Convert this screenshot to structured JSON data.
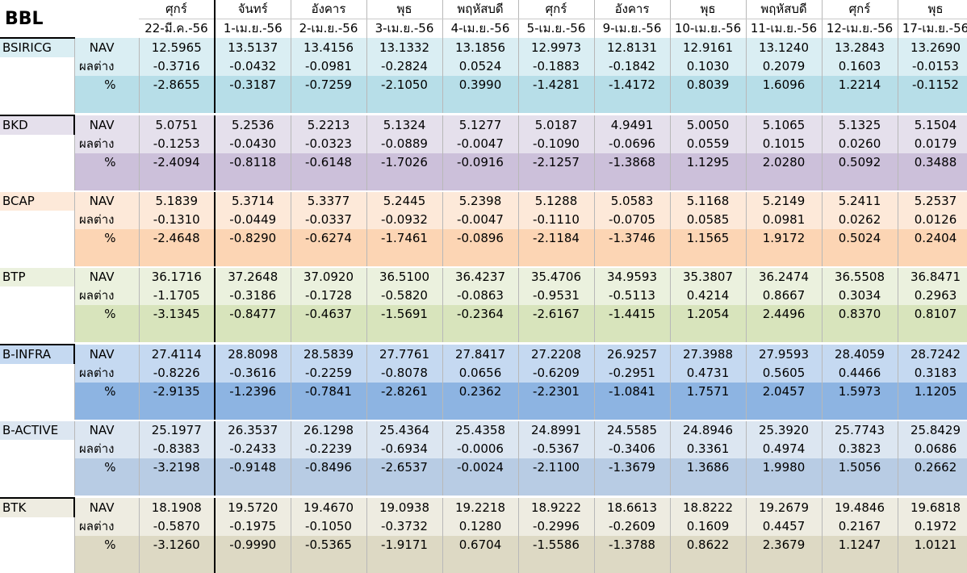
{
  "sheet_title": "BBL",
  "columns": [
    {
      "day": "ศุกร์",
      "date": "22-มี.ค.-56"
    },
    {
      "day": "จันทร์",
      "date": "1-เม.ย.-56"
    },
    {
      "day": "อังคาร",
      "date": "2-เม.ย.-56"
    },
    {
      "day": "พุธ",
      "date": "3-เม.ย.-56"
    },
    {
      "day": "พฤหัสบดี",
      "date": "4-เม.ย.-56"
    },
    {
      "day": "ศุกร์",
      "date": "5-เม.ย.-56"
    },
    {
      "day": "อังคาร",
      "date": "9-เม.ย.-56"
    },
    {
      "day": "พุธ",
      "date": "10-เม.ย.-56"
    },
    {
      "day": "พฤหัสบดี",
      "date": "11-เม.ย.-56"
    },
    {
      "day": "ศุกร์",
      "date": "12-เม.ย.-56"
    },
    {
      "day": "พุธ",
      "date": "17-เม.ย.-56"
    }
  ],
  "row_labels": {
    "nav": "NAV",
    "diff": "ผลต่าง",
    "pct": "%"
  },
  "funds": [
    {
      "name": "BSIRICG",
      "colors": {
        "light": "#daeef3",
        "dark": "#b7dee8"
      },
      "nav": [
        "12.5965",
        "13.5137",
        "13.4156",
        "13.1332",
        "13.1856",
        "12.9973",
        "12.8131",
        "12.9161",
        "13.1240",
        "13.2843",
        "13.2690"
      ],
      "diff": [
        "-0.3716",
        "-0.0432",
        "-0.0981",
        "-0.2824",
        "0.0524",
        "-0.1883",
        "-0.1842",
        "0.1030",
        "0.2079",
        "0.1603",
        "-0.0153"
      ],
      "pct": [
        "-2.8655",
        "-0.3187",
        "-0.7259",
        "-2.1050",
        "0.3990",
        "-1.4281",
        "-1.4172",
        "0.8039",
        "1.6096",
        "1.2214",
        "-0.1152"
      ]
    },
    {
      "name": "BKD",
      "colors": {
        "light": "#e5e0ec",
        "dark": "#ccc0da"
      },
      "nav": [
        "5.0751",
        "5.2536",
        "5.2213",
        "5.1324",
        "5.1277",
        "5.0187",
        "4.9491",
        "5.0050",
        "5.1065",
        "5.1325",
        "5.1504"
      ],
      "diff": [
        "-0.1253",
        "-0.0430",
        "-0.0323",
        "-0.0889",
        "-0.0047",
        "-0.1090",
        "-0.0696",
        "0.0559",
        "0.1015",
        "0.0260",
        "0.0179"
      ],
      "pct": [
        "-2.4094",
        "-0.8118",
        "-0.6148",
        "-1.7026",
        "-0.0916",
        "-2.1257",
        "-1.3868",
        "1.1295",
        "2.0280",
        "0.5092",
        "0.3488"
      ]
    },
    {
      "name": "BCAP",
      "colors": {
        "light": "#fde9d9",
        "dark": "#fcd5b4"
      },
      "nav": [
        "5.1839",
        "5.3714",
        "5.3377",
        "5.2445",
        "5.2398",
        "5.1288",
        "5.0583",
        "5.1168",
        "5.2149",
        "5.2411",
        "5.2537"
      ],
      "diff": [
        "-0.1310",
        "-0.0449",
        "-0.0337",
        "-0.0932",
        "-0.0047",
        "-0.1110",
        "-0.0705",
        "0.0585",
        "0.0981",
        "0.0262",
        "0.0126"
      ],
      "pct": [
        "-2.4648",
        "-0.8290",
        "-0.6274",
        "-1.7461",
        "-0.0896",
        "-2.1184",
        "-1.3746",
        "1.1565",
        "1.9172",
        "0.5024",
        "0.2404"
      ]
    },
    {
      "name": "BTP",
      "colors": {
        "light": "#ebf1de",
        "dark": "#d8e4bc"
      },
      "nav": [
        "36.1716",
        "37.2648",
        "37.0920",
        "36.5100",
        "36.4237",
        "35.4706",
        "34.9593",
        "35.3807",
        "36.2474",
        "36.5508",
        "36.8471"
      ],
      "diff": [
        "-1.1705",
        "-0.3186",
        "-0.1728",
        "-0.5820",
        "-0.0863",
        "-0.9531",
        "-0.5113",
        "0.4214",
        "0.8667",
        "0.3034",
        "0.2963"
      ],
      "pct": [
        "-3.1345",
        "-0.8477",
        "-0.4637",
        "-1.5691",
        "-0.2364",
        "-2.6167",
        "-1.4415",
        "1.2054",
        "2.4496",
        "0.8370",
        "0.8107"
      ]
    },
    {
      "name": "B-INFRA",
      "colors": {
        "light": "#c5d9f1",
        "dark": "#8db4e2"
      },
      "nav": [
        "27.4114",
        "28.8098",
        "28.5839",
        "27.7761",
        "27.8417",
        "27.2208",
        "26.9257",
        "27.3988",
        "27.9593",
        "28.4059",
        "28.7242"
      ],
      "diff": [
        "-0.8226",
        "-0.3616",
        "-0.2259",
        "-0.8078",
        "0.0656",
        "-0.6209",
        "-0.2951",
        "0.4731",
        "0.5605",
        "0.4466",
        "0.3183"
      ],
      "pct": [
        "-2.9135",
        "-1.2396",
        "-0.7841",
        "-2.8261",
        "0.2362",
        "-2.2301",
        "-1.0841",
        "1.7571",
        "2.0457",
        "1.5973",
        "1.1205"
      ]
    },
    {
      "name": "B-ACTIVE",
      "colors": {
        "light": "#dce6f1",
        "dark": "#b8cce4"
      },
      "nav": [
        "25.1977",
        "26.3537",
        "26.1298",
        "25.4364",
        "25.4358",
        "24.8991",
        "24.5585",
        "24.8946",
        "25.3920",
        "25.7743",
        "25.8429"
      ],
      "diff": [
        "-0.8383",
        "-0.2433",
        "-0.2239",
        "-0.6934",
        "-0.0006",
        "-0.5367",
        "-0.3406",
        "0.3361",
        "0.4974",
        "0.3823",
        "0.0686"
      ],
      "pct": [
        "-3.2198",
        "-0.9148",
        "-0.8496",
        "-2.6537",
        "-0.0024",
        "-2.1100",
        "-1.3679",
        "1.3686",
        "1.9980",
        "1.5056",
        "0.2662"
      ]
    },
    {
      "name": "BTK",
      "colors": {
        "light": "#eeece1",
        "dark": "#ddd9c4"
      },
      "nav": [
        "18.1908",
        "19.5720",
        "19.4670",
        "19.0938",
        "19.2218",
        "18.9222",
        "18.6613",
        "18.8222",
        "19.2679",
        "19.4846",
        "19.6818"
      ],
      "diff": [
        "-0.5870",
        "-0.1975",
        "-0.1050",
        "-0.3732",
        "0.1280",
        "-0.2996",
        "-0.2609",
        "0.1609",
        "0.4457",
        "0.2167",
        "0.1972"
      ],
      "pct": [
        "-3.1260",
        "-0.9990",
        "-0.5365",
        "-1.9171",
        "0.6704",
        "-1.5586",
        "-1.3788",
        "0.8622",
        "2.3679",
        "1.1247",
        "1.0121"
      ]
    }
  ]
}
